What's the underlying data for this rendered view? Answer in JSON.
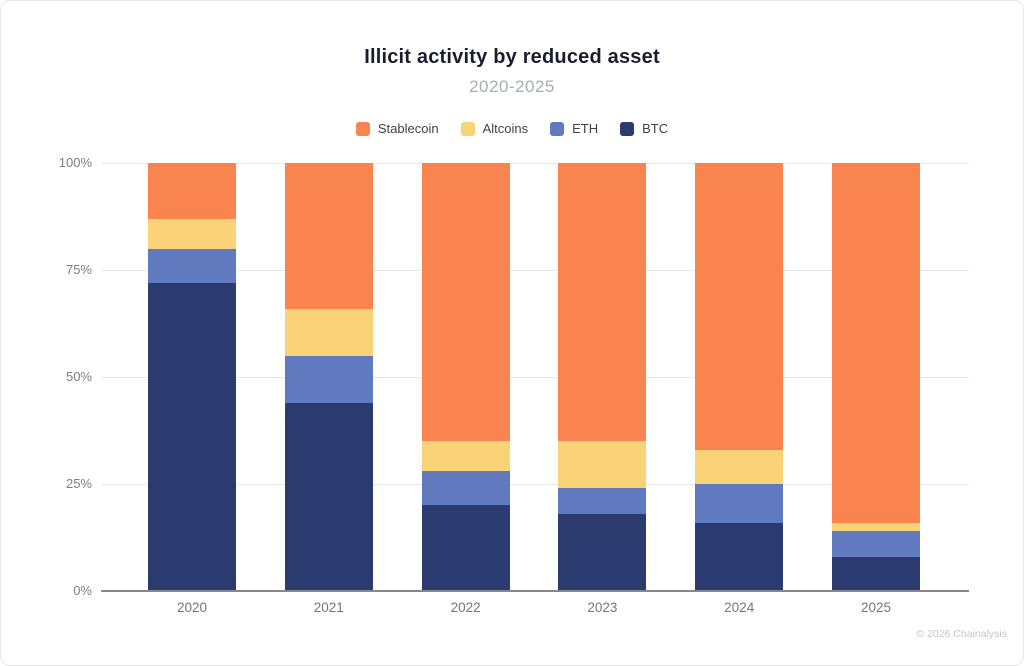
{
  "footer": {
    "copyright": "© 2026 Chainalysis"
  },
  "chart_data": {
    "type": "bar",
    "variant": "stacked-percent",
    "title": "Illicit activity by reduced asset",
    "subtitle": "2020-2025",
    "categories": [
      "2020",
      "2021",
      "2022",
      "2023",
      "2024",
      "2025"
    ],
    "unit": "%",
    "ylim": [
      0,
      100
    ],
    "yticks": [
      {
        "value": 0,
        "label": "0%"
      },
      {
        "value": 25,
        "label": "25%"
      },
      {
        "value": 50,
        "label": "50%"
      },
      {
        "value": 75,
        "label": "75%"
      },
      {
        "value": 100,
        "label": "100%"
      }
    ],
    "grid": "horizontal",
    "legend_position": "top",
    "legend_order": [
      "Stablecoin",
      "Altcoins",
      "ETH",
      "BTC"
    ],
    "stack_order_bottom_to_top": [
      "BTC",
      "ETH",
      "Altcoins",
      "Stablecoin"
    ],
    "series": [
      {
        "name": "Stablecoin",
        "color": "#FA8450",
        "values": [
          13,
          34,
          65,
          65,
          67,
          84
        ]
      },
      {
        "name": "Altcoins",
        "color": "#FAD378",
        "values": [
          7,
          11,
          7,
          11,
          8,
          2
        ]
      },
      {
        "name": "ETH",
        "color": "#6179BE",
        "values": [
          8,
          11,
          8,
          6,
          9,
          6
        ]
      },
      {
        "name": "BTC",
        "color": "#2B3A6F",
        "values": [
          72,
          44,
          20,
          18,
          16,
          8
        ]
      }
    ]
  }
}
